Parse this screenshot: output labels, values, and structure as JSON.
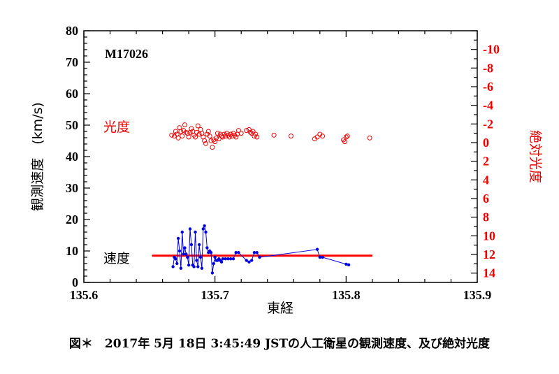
{
  "chart_data": {
    "type": "scatter",
    "annotation_id": "M17026",
    "xlabel": "東経",
    "ylabel_left": "観測速度　(km/s)",
    "ylabel_right": "絶対光度",
    "xlim": [
      135.6,
      135.9
    ],
    "ylim_left": [
      0,
      80
    ],
    "ylim_right": [
      -12,
      15
    ],
    "x_ticks": [
      "135.6",
      "135.7",
      "135.8",
      "135.9"
    ],
    "x_tick_values": [
      135.6,
      135.7,
      135.8,
      135.9
    ],
    "y_left_ticks": [
      "0",
      "10",
      "20",
      "30",
      "40",
      "50",
      "60",
      "70",
      "80"
    ],
    "y_left_tick_values": [
      0,
      10,
      20,
      30,
      40,
      50,
      60,
      70,
      80
    ],
    "y_right_ticks": [
      "-10",
      "-8",
      "-6",
      "-4",
      "-2",
      "0",
      "2",
      "4",
      "6",
      "8",
      "10",
      "12",
      "14"
    ],
    "y_right_tick_values": [
      -10,
      -8,
      -6,
      -4,
      -2,
      0,
      2,
      4,
      6,
      8,
      10,
      12,
      14
    ],
    "grid": false,
    "colors": {
      "speed": "#0000dd",
      "brightness": "#ee0000",
      "average": "#ff0000"
    },
    "series": [
      {
        "name": "速度",
        "axis": "left",
        "color": "#0000dd",
        "marker": "dot-line",
        "x": [
          135.668,
          135.669,
          135.67,
          135.671,
          135.672,
          135.673,
          135.674,
          135.675,
          135.676,
          135.677,
          135.678,
          135.679,
          135.68,
          135.681,
          135.682,
          135.683,
          135.684,
          135.685,
          135.686,
          135.687,
          135.688,
          135.689,
          135.69,
          135.691,
          135.692,
          135.693,
          135.694,
          135.695,
          135.696,
          135.697,
          135.698,
          135.699,
          135.7,
          135.701,
          135.702,
          135.703,
          135.704,
          135.705,
          135.706,
          135.708,
          135.71,
          135.712,
          135.714,
          135.716,
          135.718,
          135.724,
          135.726,
          135.728,
          135.73,
          135.732,
          135.734,
          135.778,
          135.78,
          135.782,
          135.8,
          135.802
        ],
        "y": [
          5,
          8,
          7.5,
          6,
          14,
          10,
          4.5,
          16,
          9,
          11,
          9,
          8,
          5.5,
          17,
          12,
          5.5,
          5,
          16,
          7,
          5,
          12,
          8,
          4.5,
          17,
          18,
          16,
          11,
          9.5,
          10,
          9.5,
          3,
          6,
          8,
          7,
          7,
          7.5,
          7,
          6.5,
          7.5,
          7.5,
          7.5,
          7.5,
          7.5,
          9.5,
          9.5,
          7,
          6.5,
          7,
          9.5,
          9.5,
          8,
          10.5,
          8,
          8,
          5.8,
          5.6
        ]
      },
      {
        "name": "光度",
        "axis": "right",
        "color": "#ee0000",
        "marker": "open-circle",
        "x": [
          135.667,
          135.669,
          135.67,
          135.671,
          135.672,
          135.673,
          135.674,
          135.675,
          135.676,
          135.677,
          135.678,
          135.679,
          135.68,
          135.681,
          135.682,
          135.683,
          135.684,
          135.685,
          135.686,
          135.687,
          135.688,
          135.689,
          135.69,
          135.691,
          135.692,
          135.693,
          135.694,
          135.695,
          135.696,
          135.697,
          135.698,
          135.699,
          135.7,
          135.701,
          135.702,
          135.703,
          135.704,
          135.705,
          135.706,
          135.707,
          135.708,
          135.709,
          135.71,
          135.711,
          135.712,
          135.713,
          135.714,
          135.715,
          135.716,
          135.717,
          135.718,
          135.72,
          135.724,
          135.726,
          135.727,
          135.728,
          135.729,
          135.73,
          135.731,
          135.732,
          135.745,
          135.758,
          135.776,
          135.778,
          135.78,
          135.782,
          135.798,
          135.799,
          135.8,
          135.801,
          135.818
        ],
        "y": [
          -0.8,
          -0.7,
          -1.2,
          -0.9,
          -0.5,
          -1.6,
          -1.2,
          -0.7,
          -1.3,
          -1.9,
          -1.1,
          -1.0,
          -0.6,
          -1.1,
          -1.5,
          -1.2,
          -0.8,
          -0.6,
          -1.1,
          -1.8,
          -0.9,
          -1.4,
          -1.0,
          -0.6,
          -0.2,
          0.1,
          -0.9,
          -1.2,
          -0.7,
          -0.2,
          0.5,
          -0.3,
          -0.1,
          -0.5,
          -1.0,
          -0.4,
          -0.9,
          -0.7,
          -0.6,
          -0.9,
          -0.7,
          -1.0,
          -0.8,
          -0.6,
          -0.9,
          -0.7,
          -1.0,
          -0.8,
          -0.6,
          -0.9,
          -1.3,
          -1.0,
          -1.3,
          -1.4,
          -1.1,
          -1.0,
          -1.2,
          -0.7,
          -0.9,
          -0.6,
          -0.8,
          -0.7,
          -0.4,
          -0.6,
          -0.9,
          -0.7,
          -0.3,
          -0.1,
          -0.6,
          -0.7,
          -0.5
        ]
      },
      {
        "name": "",
        "axis": "left",
        "color": "#ff0000",
        "marker": "thick-line",
        "x": [
          135.652,
          135.82
        ],
        "y": [
          8.5,
          8.5
        ]
      }
    ]
  },
  "caption": "図＊　2017年 5月 18日 3:45:49 JSTの人工衛星の観測速度、及び絶対光度"
}
